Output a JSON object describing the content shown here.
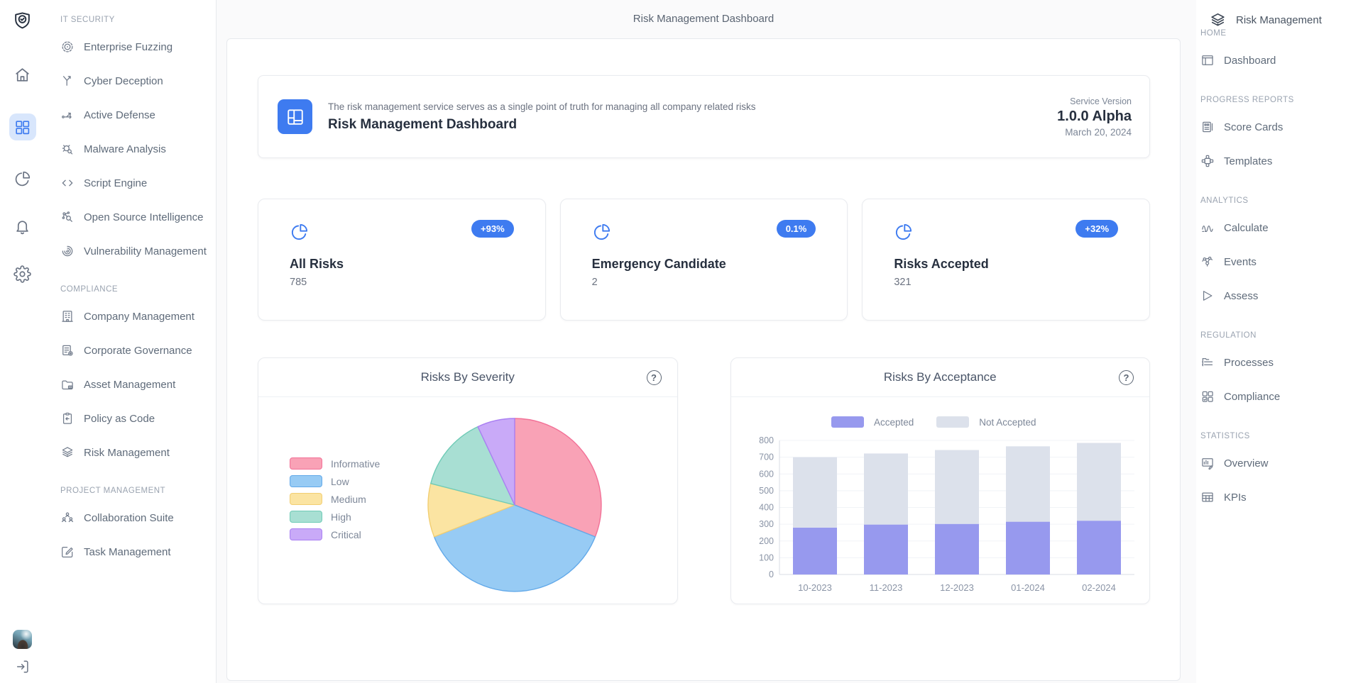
{
  "app": {
    "top_title": "Risk Management Dashboard",
    "help_glyph": "?"
  },
  "rail": {
    "logo_icon": "shield-logo",
    "items": [
      {
        "icon": "home",
        "active": false
      },
      {
        "icon": "grid",
        "active": true
      },
      {
        "icon": "pie-chart",
        "active": false
      },
      {
        "icon": "bell",
        "active": false
      },
      {
        "icon": "gear",
        "active": false
      }
    ],
    "logout_icon": "logout"
  },
  "sidebar": {
    "sections": [
      {
        "label": "IT SECURITY",
        "items": [
          {
            "icon": "target",
            "label": "Enterprise Fuzzing"
          },
          {
            "icon": "branch",
            "label": "Cyber Deception"
          },
          {
            "icon": "route",
            "label": "Active Defense"
          },
          {
            "icon": "bug-search",
            "label": "Malware Analysis"
          },
          {
            "icon": "code",
            "label": "Script Engine"
          },
          {
            "icon": "network-search",
            "label": "Open Source Intelligence"
          },
          {
            "icon": "fingerprint",
            "label": "Vulnerability Management"
          }
        ]
      },
      {
        "label": "COMPLIANCE",
        "items": [
          {
            "icon": "building",
            "label": "Company Management"
          },
          {
            "icon": "doc-gear",
            "label": "Corporate Governance"
          },
          {
            "icon": "folder",
            "label": "Asset Management"
          },
          {
            "icon": "clipboard",
            "label": "Policy as Code"
          },
          {
            "icon": "layers-eye",
            "label": "Risk Management"
          }
        ]
      },
      {
        "label": "PROJECT MANAGEMENT",
        "items": [
          {
            "icon": "users",
            "label": "Collaboration Suite"
          },
          {
            "icon": "edit-square",
            "label": "Task Management"
          }
        ]
      }
    ]
  },
  "header_card": {
    "icon": "dashboard-tile",
    "description": "The risk management service serves as a single point of truth for managing all company related risks",
    "title": "Risk Management Dashboard",
    "service_version_label": "Service Version",
    "version": "1.0.0 Alpha",
    "date": "March 20, 2024"
  },
  "stat_cards": [
    {
      "icon": "pie-chart",
      "title": "All Risks",
      "value": "785",
      "badge": "+93%"
    },
    {
      "icon": "pie-chart",
      "title": "Emergency Candidate",
      "value": "2",
      "badge": "0.1%"
    },
    {
      "icon": "pie-chart",
      "title": "Risks Accepted",
      "value": "321",
      "badge": "+32%"
    }
  ],
  "right_sidebar": {
    "title": "Risk Management",
    "title_icon": "layers-eye",
    "sections": [
      {
        "label": "HOME",
        "items": [
          {
            "icon": "window",
            "label": "Dashboard"
          }
        ]
      },
      {
        "label": "PROGRESS REPORTS",
        "items": [
          {
            "icon": "score-card",
            "label": "Score Cards"
          },
          {
            "icon": "templates",
            "label": "Templates"
          }
        ]
      },
      {
        "label": "ANALYTICS",
        "items": [
          {
            "icon": "wave",
            "label": "Calculate"
          },
          {
            "icon": "nodes",
            "label": "Events"
          },
          {
            "icon": "assess",
            "label": "Assess"
          }
        ]
      },
      {
        "label": "REGULATION",
        "items": [
          {
            "icon": "process-list",
            "label": "Processes"
          },
          {
            "icon": "check-grid",
            "label": "Compliance"
          }
        ]
      },
      {
        "label": "STATISTICS",
        "items": [
          {
            "icon": "report",
            "label": "Overview"
          },
          {
            "icon": "table",
            "label": "KPIs"
          }
        ]
      }
    ]
  },
  "colors": {
    "accent": "#3e7bf0",
    "accent_soft": "#d8e6fc",
    "card_border": "#e9ebef",
    "text_dark": "#27303f",
    "text_grey": "#6b7280",
    "axis_label": "#8a94a6"
  },
  "chart_data": [
    {
      "type": "pie",
      "title": "Risks By Severity",
      "labels": [
        "Informative",
        "Low",
        "Medium",
        "High",
        "Critical"
      ],
      "values_percent": [
        31,
        38,
        10,
        14,
        7
      ],
      "colors": [
        "#F9A2B6",
        "#97CBF4",
        "#FBE4A2",
        "#A8DFD3",
        "#C9AAF8"
      ],
      "border_colors": [
        "#F27197",
        "#62A9E9",
        "#F2CE72",
        "#6FCBB6",
        "#AA80F2"
      ],
      "start": "top",
      "direction": "clockwise",
      "legend_position": "left",
      "grid": false
    },
    {
      "type": "bar",
      "stacked": true,
      "title": "Risks By Acceptance",
      "categories": [
        "10-2023",
        "11-2023",
        "12-2023",
        "01-2024",
        "02-2024"
      ],
      "series": [
        {
          "name": "Accepted",
          "color": "#9799EE",
          "values": [
            280,
            298,
            302,
            315,
            321
          ]
        },
        {
          "name": "Not Accepted",
          "color": "#DCE1EB",
          "values": [
            420,
            424,
            441,
            450,
            464
          ]
        }
      ],
      "totals": [
        700,
        722,
        743,
        765,
        785
      ],
      "ylim": [
        0,
        800
      ],
      "ytick_step": 100,
      "grid": true,
      "legend_position": "top"
    }
  ]
}
